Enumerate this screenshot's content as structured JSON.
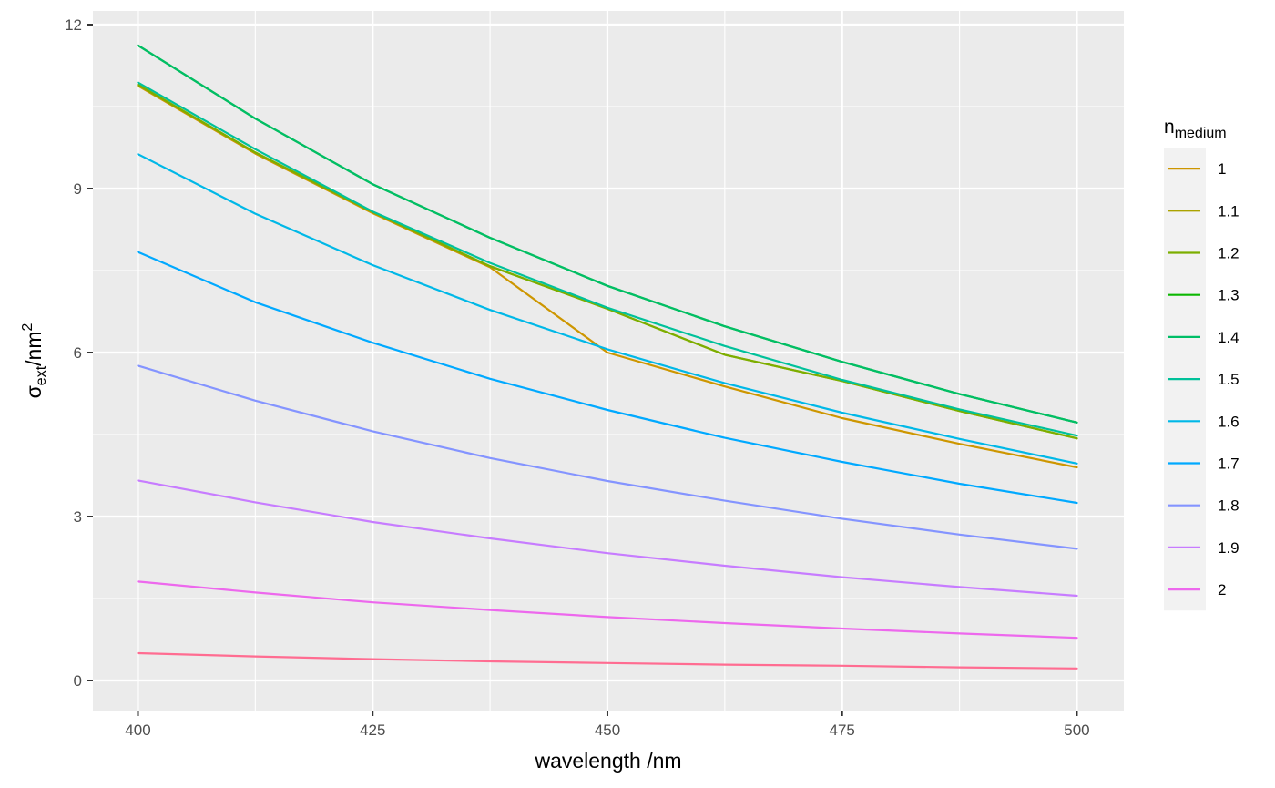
{
  "chart_data": {
    "type": "line",
    "title": "",
    "xlabel": "wavelength /nm",
    "ylabel": {
      "symbol": "σ",
      "subscript": "ext",
      "unit": "/nm",
      "superscript": "2"
    },
    "xlim": [
      395.2,
      505
    ],
    "ylim": [
      -0.55,
      12.25
    ],
    "x_ticks": [
      400,
      425,
      450,
      475,
      500
    ],
    "y_ticks": [
      0,
      3,
      6,
      9,
      12
    ],
    "grid": true,
    "legend": {
      "position": "right",
      "title": {
        "main": "n",
        "subscript": "medium"
      }
    },
    "x": [
      400,
      412.5,
      425,
      437.5,
      450,
      462.5,
      475,
      487.5,
      500
    ],
    "series": [
      {
        "name": "1",
        "color": "#CD9600",
        "values": [
          10.88,
          9.64,
          8.55,
          7.56,
          6.0,
          5.38,
          4.8,
          4.33,
          3.9
        ]
      },
      {
        "name": "1.1",
        "color": "#ABA300",
        "values": [
          10.9,
          9.66,
          8.57,
          7.58,
          6.8,
          5.96,
          5.48,
          4.93,
          4.43
        ]
      },
      {
        "name": "1.2",
        "color": "#7CAE00",
        "values": [
          10.9,
          9.66,
          8.57,
          7.58,
          6.8,
          5.96,
          5.48,
          4.93,
          4.43
        ]
      },
      {
        "name": "1.3",
        "color": "#0CB702",
        "values": [
          11.62,
          10.28,
          9.08,
          8.1,
          7.22,
          6.48,
          5.83,
          5.24,
          4.72
        ]
      },
      {
        "name": "1.4",
        "color": "#00BE67",
        "values": [
          11.62,
          10.28,
          9.08,
          8.1,
          7.22,
          6.48,
          5.83,
          5.24,
          4.72
        ]
      },
      {
        "name": "1.5",
        "color": "#00C19A",
        "values": [
          10.94,
          9.72,
          8.58,
          7.64,
          6.82,
          6.12,
          5.5,
          4.96,
          4.48
        ]
      },
      {
        "name": "1.6",
        "color": "#00B8E7",
        "values": [
          9.63,
          8.54,
          7.6,
          6.78,
          6.06,
          5.44,
          4.9,
          4.42,
          3.97
        ]
      },
      {
        "name": "1.7",
        "color": "#00A9FF",
        "values": [
          7.84,
          6.92,
          6.18,
          5.52,
          4.95,
          4.44,
          4.0,
          3.6,
          3.25
        ]
      },
      {
        "name": "1.8",
        "color": "#8494FF",
        "values": [
          5.76,
          5.12,
          4.56,
          4.07,
          3.65,
          3.29,
          2.96,
          2.67,
          2.41
        ]
      },
      {
        "name": "1.9",
        "color": "#C77CFF",
        "values": [
          3.66,
          3.26,
          2.9,
          2.6,
          2.33,
          2.1,
          1.89,
          1.71,
          1.55
        ]
      },
      {
        "name": "2",
        "color": "#ED68ED",
        "values": [
          1.81,
          1.61,
          1.43,
          1.29,
          1.16,
          1.05,
          0.95,
          0.86,
          0.78
        ]
      },
      {
        "name": "",
        "color": "#FF6C91",
        "values": [
          0.5,
          0.44,
          0.39,
          0.35,
          0.32,
          0.29,
          0.27,
          0.24,
          0.22
        ]
      }
    ]
  }
}
